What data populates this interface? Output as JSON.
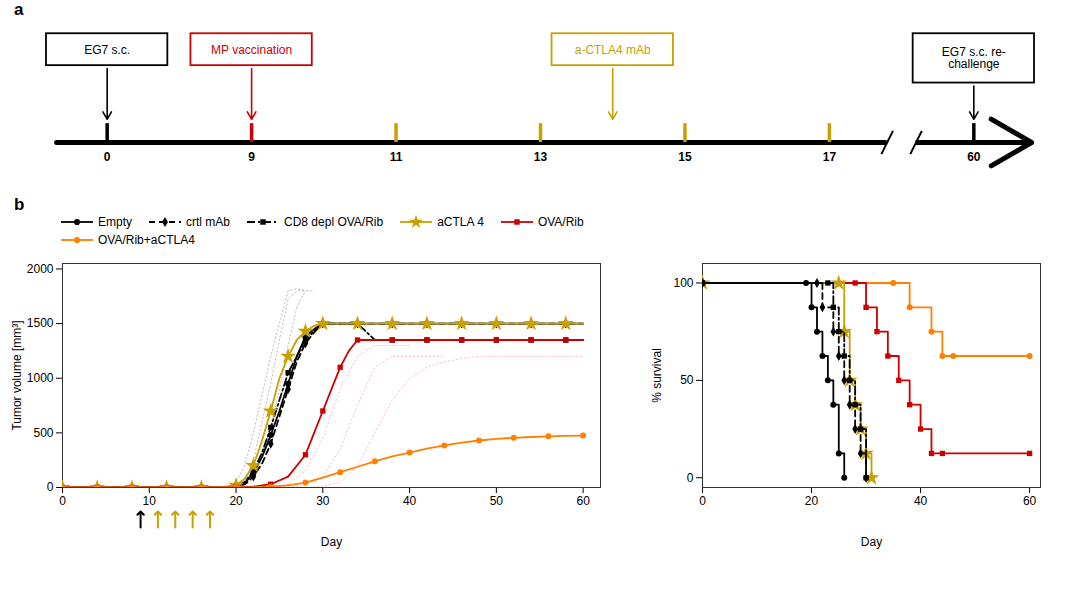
{
  "chart_data": [
    {
      "type": "timeline",
      "title": "a",
      "categories": [
        "0",
        "9",
        "11",
        "13",
        "15",
        "17",
        "60"
      ],
      "colors": [
        "black",
        "#cc0000",
        "#c8a000",
        "#c8a000",
        "#c8a000",
        "#c8a000",
        "black"
      ],
      "annotations": [
        {
          "text": "EG7 s.c.",
          "color": "black",
          "x": [
            "0"
          ]
        },
        {
          "text": "MP vaccination",
          "color": "#cc0000",
          "x": [
            "9"
          ]
        },
        {
          "text": "a-CTLA4 mAb",
          "color": "#c8a000",
          "x": [
            "11",
            "13",
            "15",
            "17"
          ]
        },
        {
          "text": "EG7 s.c. re-\nchallenge",
          "color": "black",
          "x": [
            "60"
          ]
        }
      ]
    },
    {
      "type": "line",
      "title": "b",
      "xlabel": "Day",
      "ylabel": "Tumor volume [mm³]",
      "xlim": [
        0,
        62
      ],
      "ylim": [
        0,
        2050
      ],
      "xticks": [
        0,
        10,
        20,
        30,
        40,
        50,
        60
      ],
      "yticks": [
        0,
        500,
        1000,
        1500,
        2000
      ],
      "legend": "top",
      "series": [
        {
          "color": "#888",
          "line_style": "dotted",
          "x": [
            18,
            19,
            20,
            21,
            22,
            23,
            24,
            25,
            26,
            27,
            28
          ],
          "values": [
            0,
            5,
            50,
            200,
            500,
            850,
            1200,
            1500,
            1800,
            1820,
            1800
          ]
        },
        {
          "color": "#888",
          "line_style": "dotted",
          "x": [
            19,
            20,
            21,
            22,
            23,
            24,
            25,
            26,
            27,
            28,
            29
          ],
          "values": [
            0,
            8,
            60,
            250,
            600,
            950,
            1350,
            1720,
            1800,
            1800,
            1800
          ]
        },
        {
          "color": "#888",
          "line_style": "dotted",
          "x": [
            20,
            21,
            22,
            23,
            24,
            25,
            26,
            27,
            28
          ],
          "values": [
            0,
            15,
            80,
            280,
            550,
            900,
            1300,
            1650,
            1800
          ]
        },
        {
          "color": "#ff8888",
          "line_style": "dotted",
          "x": [
            24,
            26,
            28,
            30,
            32,
            34,
            36,
            38,
            40
          ],
          "values": [
            5,
            30,
            150,
            450,
            900,
            1200,
            1300,
            1300,
            1300
          ]
        },
        {
          "color": "#ff8888",
          "line_style": "dotted",
          "x": [
            26,
            28,
            30,
            32,
            34,
            36,
            38,
            40,
            42,
            44
          ],
          "values": [
            2,
            20,
            100,
            350,
            750,
            1100,
            1200,
            1200,
            1200,
            1200
          ]
        },
        {
          "color": "#ff8888",
          "line_style": "dotted",
          "x": [
            28,
            30,
            32,
            34,
            36,
            38,
            40,
            42,
            44,
            46,
            48,
            50,
            52,
            54,
            56,
            58,
            60
          ],
          "values": [
            2,
            10,
            50,
            200,
            500,
            800,
            1000,
            1100,
            1150,
            1180,
            1200,
            1200,
            1200,
            1200,
            1200,
            1200,
            1200
          ]
        },
        {
          "name": "Empty",
          "color": "black",
          "line_style": "solid",
          "marker": "circle",
          "x": [
            0,
            2,
            4,
            6,
            8,
            10,
            12,
            14,
            16,
            18,
            20,
            21,
            22,
            23,
            24,
            25,
            26,
            27,
            28,
            29,
            30,
            32,
            34,
            36,
            38,
            40,
            42,
            44,
            46,
            48,
            50,
            52,
            54,
            56,
            58,
            60
          ],
          "values": [
            0,
            0,
            0,
            0,
            0,
            0,
            0,
            0,
            0,
            0,
            10,
            40,
            130,
            280,
            480,
            700,
            950,
            1200,
            1380,
            1450,
            1500,
            1500,
            1500,
            1500,
            1500,
            1500,
            1500,
            1500,
            1500,
            1500,
            1500,
            1500,
            1500,
            1500,
            1500,
            1500
          ]
        },
        {
          "name": "crtl mAb",
          "color": "black",
          "line_style": "dashed",
          "marker": "diamond",
          "x": [
            0,
            2,
            4,
            6,
            8,
            10,
            12,
            14,
            16,
            18,
            20,
            21,
            22,
            23,
            24,
            25,
            26,
            27,
            28,
            29,
            30,
            32,
            34,
            36,
            38,
            40,
            42,
            44,
            46,
            48,
            50,
            52,
            54,
            56,
            58,
            60
          ],
          "values": [
            0,
            0,
            0,
            0,
            0,
            0,
            0,
            0,
            0,
            0,
            8,
            30,
            100,
            220,
            400,
            650,
            900,
            1150,
            1320,
            1420,
            1500,
            1500,
            1500,
            1500,
            1500,
            1500,
            1500,
            1500,
            1500,
            1500,
            1500,
            1500,
            1500,
            1500,
            1500,
            1500
          ]
        },
        {
          "name": "CD8 depl OVA/Rib",
          "color": "black",
          "line_style": "dashdot",
          "marker": "square",
          "x": [
            0,
            2,
            4,
            6,
            8,
            10,
            12,
            14,
            16,
            18,
            20,
            21,
            22,
            23,
            24,
            25,
            26,
            27,
            28,
            29,
            30,
            32,
            34,
            36,
            38,
            40,
            42,
            44,
            46,
            48,
            50,
            52,
            54,
            56,
            58,
            60
          ],
          "values": [
            0,
            0,
            0,
            0,
            0,
            0,
            0,
            0,
            0,
            0,
            10,
            50,
            150,
            320,
            550,
            800,
            1050,
            1200,
            1350,
            1430,
            1500,
            1500,
            1500,
            1350,
            1350,
            1350,
            1350,
            1350,
            1350,
            1350,
            1350,
            1350,
            1350,
            1350,
            1350,
            1350
          ]
        },
        {
          "name": "aCTLA 4",
          "color": "#c8a000",
          "line_style": "solid",
          "marker": "star",
          "x": [
            0,
            2,
            4,
            6,
            8,
            10,
            12,
            14,
            16,
            18,
            20,
            21,
            22,
            23,
            24,
            25,
            26,
            27,
            28,
            29,
            30,
            32,
            34,
            36,
            38,
            40,
            42,
            44,
            46,
            48,
            50,
            52,
            54,
            56,
            58,
            60
          ],
          "values": [
            0,
            0,
            0,
            0,
            0,
            0,
            0,
            0,
            0,
            0,
            20,
            80,
            200,
            430,
            700,
            1000,
            1200,
            1350,
            1430,
            1480,
            1500,
            1500,
            1500,
            1500,
            1500,
            1500,
            1500,
            1500,
            1500,
            1500,
            1500,
            1500,
            1500,
            1500,
            1500,
            1500
          ]
        },
        {
          "name": "OVA/Rib",
          "color": "#cc0000",
          "line_style": "solid",
          "marker": "square",
          "x": [
            0,
            2,
            4,
            6,
            8,
            10,
            12,
            14,
            16,
            18,
            20,
            22,
            24,
            26,
            28,
            29,
            30,
            31,
            32,
            33,
            34,
            36,
            38,
            40,
            42,
            44,
            46,
            48,
            50,
            52,
            54,
            56,
            58,
            60
          ],
          "values": [
            0,
            0,
            0,
            0,
            0,
            0,
            0,
            0,
            0,
            0,
            2,
            8,
            30,
            100,
            300,
            500,
            700,
            900,
            1100,
            1250,
            1350,
            1350,
            1350,
            1350,
            1350,
            1350,
            1350,
            1350,
            1350,
            1350,
            1350,
            1350,
            1350,
            1350
          ]
        },
        {
          "name": "OVA/Rib+aCTLA4",
          "color": "#FF7F00",
          "line_style": "solid",
          "marker": "circle",
          "x": [
            0,
            2,
            4,
            6,
            8,
            10,
            12,
            14,
            16,
            18,
            20,
            22,
            24,
            26,
            28,
            30,
            32,
            34,
            36,
            38,
            40,
            42,
            44,
            46,
            48,
            50,
            52,
            54,
            56,
            58,
            60
          ],
          "values": [
            0,
            0,
            0,
            0,
            0,
            0,
            0,
            0,
            0,
            0,
            0,
            2,
            8,
            20,
            45,
            90,
            140,
            190,
            240,
            285,
            320,
            355,
            385,
            410,
            430,
            445,
            455,
            462,
            468,
            472,
            475
          ]
        }
      ],
      "annotations": [
        {
          "type": "arrow",
          "x": 9,
          "color": "black"
        },
        {
          "type": "arrow",
          "x": 11,
          "color": "#c8a000"
        },
        {
          "type": "arrow",
          "x": 13,
          "color": "#c8a000"
        },
        {
          "type": "arrow",
          "x": 15,
          "color": "#c8a000"
        },
        {
          "type": "arrow",
          "x": 17,
          "color": "#c8a000"
        }
      ]
    },
    {
      "type": "step",
      "xlabel": "Day",
      "ylabel": "% survival",
      "xlim": [
        0,
        62
      ],
      "ylim": [
        -5,
        110
      ],
      "xticks": [
        0,
        20,
        40,
        60
      ],
      "yticks": [
        0,
        50,
        100
      ],
      "series": [
        {
          "color": "#FF7F00",
          "line_style": "solid",
          "marker": "circle",
          "x": [
            0,
            35,
            38,
            42,
            44,
            46,
            60
          ],
          "values": [
            100,
            100,
            87.5,
            75,
            62.5,
            62.5,
            62.5
          ]
        },
        {
          "color": "#cc0000",
          "line_style": "solid",
          "marker": "square",
          "x": [
            0,
            28,
            30,
            32,
            34,
            36,
            38,
            40,
            42,
            44,
            60
          ],
          "values": [
            100,
            100,
            87.5,
            75,
            62.5,
            50,
            37.5,
            25,
            12.5,
            12.5,
            12.5
          ]
        },
        {
          "color": "#c8a000",
          "line_style": "solid",
          "marker": "star",
          "x": [
            0,
            25,
            26,
            27,
            28,
            29,
            30,
            31
          ],
          "values": [
            100,
            100,
            75,
            50,
            37.5,
            25,
            12.5,
            0
          ]
        },
        {
          "color": "black",
          "line_style": "solid",
          "marker": "circle",
          "x": [
            0,
            19,
            20,
            21,
            22,
            23,
            24,
            25,
            26
          ],
          "values": [
            100,
            100,
            87.5,
            75,
            62.5,
            50,
            37.5,
            12.5,
            0
          ]
        },
        {
          "color": "black",
          "line_style": "dashdot",
          "marker": "square",
          "x": [
            0,
            23,
            24,
            25,
            26,
            27,
            28,
            29,
            30
          ],
          "values": [
            100,
            100,
            87.5,
            75,
            62.5,
            50,
            37.5,
            25,
            0
          ]
        },
        {
          "color": "black",
          "line_style": "dashed",
          "marker": "diamond",
          "x": [
            0,
            21,
            22,
            24,
            25,
            26,
            27,
            28,
            29,
            30
          ],
          "values": [
            100,
            100,
            87.5,
            75,
            62.5,
            50,
            37.5,
            25,
            12.5,
            0
          ]
        }
      ]
    }
  ]
}
